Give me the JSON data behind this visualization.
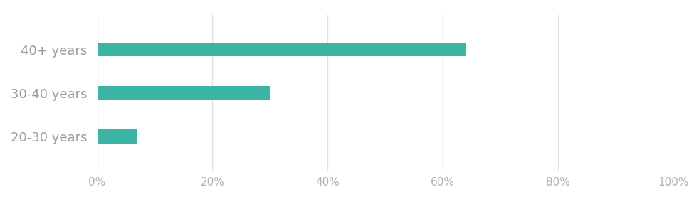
{
  "categories": [
    "40+ years",
    "30-40 years",
    "20-30 years"
  ],
  "values": [
    0.64,
    0.3,
    0.07
  ],
  "bar_color": "#3ab5a4",
  "background_color": "#ffffff",
  "label_color": "#9b9b9b",
  "tick_label_color": "#b0b0b0",
  "bar_height": 0.32,
  "xlim": [
    0,
    1.0
  ],
  "xticks": [
    0.0,
    0.2,
    0.4,
    0.6,
    0.8,
    1.0
  ],
  "xtick_labels": [
    "0%",
    "20%",
    "40%",
    "60%",
    "80%",
    "100%"
  ],
  "grid_color": "#e0e0e0",
  "label_fontsize": 13,
  "tick_fontsize": 11,
  "figsize": [
    9.75,
    2.94
  ],
  "dpi": 100
}
